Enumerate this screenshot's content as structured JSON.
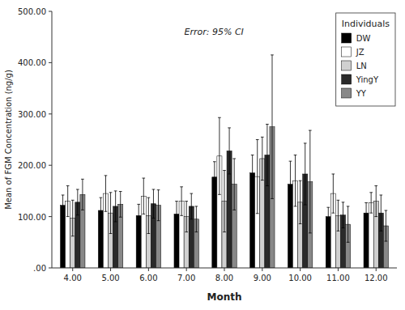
{
  "chart_data": {
    "type": "bar",
    "xlabel": "Month",
    "ylabel": "Mean of FGM Concentration (ng/g)",
    "annotation": "Error: 95% CI",
    "legend_title": "Individuals",
    "legend": "upper right",
    "grid": false,
    "categories": [
      "4.00",
      "5.00",
      "6.00",
      "7.00",
      "8.00",
      "9.00",
      "10.00",
      "11.00",
      "12.00"
    ],
    "series": [
      {
        "name": "DW",
        "color": "#000000",
        "values": [
          122,
          112,
          102,
          105,
          177,
          185,
          163,
          100,
          107
        ],
        "errors": [
          20,
          25,
          22,
          25,
          30,
          35,
          45,
          18,
          20
        ]
      },
      {
        "name": "JZ",
        "color": "#ffffff",
        "values": [
          130,
          145,
          140,
          130,
          218,
          178,
          170,
          145,
          127
        ],
        "errors": [
          30,
          35,
          35,
          28,
          75,
          72,
          50,
          38,
          20
        ]
      },
      {
        "name": "LN",
        "color": "#d0d0d0",
        "values": [
          97,
          107,
          102,
          100,
          130,
          213,
          128,
          102,
          130
        ],
        "errors": [
          35,
          40,
          35,
          30,
          60,
          42,
          42,
          30,
          30
        ]
      },
      {
        "name": "YingY",
        "color": "#2a2a2a",
        "values": [
          128,
          120,
          125,
          120,
          228,
          220,
          183,
          103,
          107
        ],
        "errors": [
          25,
          30,
          28,
          25,
          45,
          60,
          60,
          25,
          35
        ]
      },
      {
        "name": "YY",
        "color": "#888888",
        "values": [
          143,
          124,
          122,
          95,
          163,
          275,
          168,
          85,
          82
        ],
        "errors": [
          30,
          25,
          30,
          25,
          50,
          140,
          100,
          35,
          30
        ]
      }
    ],
    "ylim": [
      0,
      500
    ],
    "yticks": [
      {
        "value": 0,
        "label": ".00"
      },
      {
        "value": 100,
        "label": "100.00"
      },
      {
        "value": 200,
        "label": "200.00"
      },
      {
        "value": 300,
        "label": "300.00"
      },
      {
        "value": 400,
        "label": "400.00"
      },
      {
        "value": 500,
        "label": "500.00"
      }
    ]
  }
}
